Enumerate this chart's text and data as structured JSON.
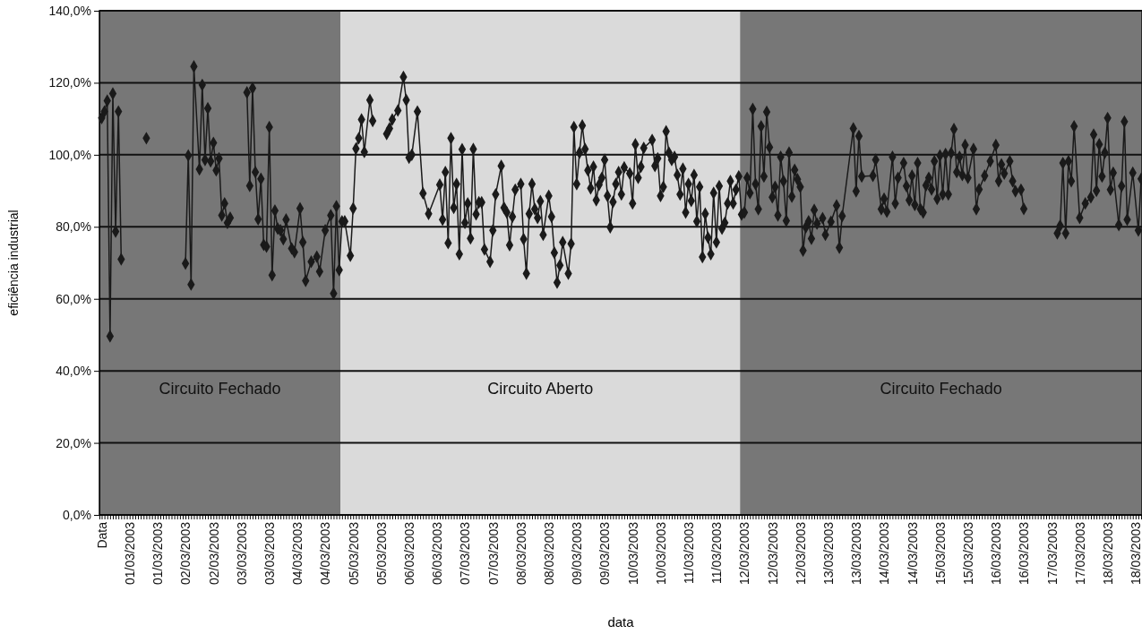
{
  "chart_data": {
    "type": "line",
    "xlabel": "data",
    "ylabel": "eficiência industrial",
    "grid": "y",
    "marker": "diamond",
    "line_style": "solid",
    "ylim": [
      0,
      140
    ],
    "yticks": [
      {
        "value": 0,
        "label": "0,0%"
      },
      {
        "value": 20,
        "label": "20,0%"
      },
      {
        "value": 40,
        "label": "40,0%"
      },
      {
        "value": 60,
        "label": "60,0%"
      },
      {
        "value": 80,
        "label": "80,0%"
      },
      {
        "value": 100,
        "label": "100,0%"
      },
      {
        "value": 120,
        "label": "120,0%"
      },
      {
        "value": 140,
        "label": "140,0%"
      }
    ],
    "categories": [
      "Data",
      null,
      null,
      null,
      null,
      null,
      null,
      null,
      null,
      null,
      "01/03/2003",
      null,
      null,
      null,
      null,
      null,
      null,
      null,
      null,
      null,
      "01/03/2003",
      null,
      null,
      null,
      null,
      null,
      null,
      null,
      null,
      null,
      "02/03/2003",
      null,
      null,
      null,
      null,
      null,
      null,
      null,
      null,
      null,
      "02/03/2003",
      null,
      null,
      null,
      null,
      null,
      null,
      null,
      null,
      null,
      "03/03/2003",
      null,
      null,
      null,
      null,
      null,
      null,
      null,
      null,
      null,
      "03/03/2003",
      null,
      null,
      null,
      null,
      null,
      null,
      null,
      null,
      null,
      "04/03/2003",
      null,
      null,
      null,
      null,
      null,
      null,
      null,
      null,
      null,
      "04/03/2003",
      null,
      null,
      null,
      null,
      null,
      null,
      null,
      null,
      null,
      "05/03/2003",
      null,
      null,
      null,
      null,
      null,
      null,
      null,
      null,
      null,
      "05/03/2003",
      null,
      null,
      null,
      null,
      null,
      null,
      null,
      null,
      null,
      "06/03/2003",
      null,
      null,
      null,
      null,
      null,
      null,
      null,
      null,
      null,
      "06/03/2003",
      null,
      null,
      null,
      null,
      null,
      null,
      null,
      null,
      null,
      "07/03/2003",
      null,
      null,
      null,
      null,
      null,
      null,
      null,
      null,
      null,
      "07/03/2003",
      null,
      null,
      null,
      null,
      null,
      null,
      null,
      null,
      null,
      "08/03/2003",
      null,
      null,
      null,
      null,
      null,
      null,
      null,
      null,
      null,
      "08/03/2003",
      null,
      null,
      null,
      null,
      null,
      null,
      null,
      null,
      null,
      "09/03/2003",
      null,
      null,
      null,
      null,
      null,
      null,
      null,
      null,
      null,
      "09/03/2003",
      null,
      null,
      null,
      null,
      null,
      null,
      null,
      null,
      null,
      "10/03/2003",
      null,
      null,
      null,
      null,
      null,
      null,
      null,
      null,
      null,
      "10/03/2003",
      null,
      null,
      null,
      null,
      null,
      null,
      null,
      null,
      null,
      "11/03/2003",
      null,
      null,
      null,
      null,
      null,
      null,
      null,
      null,
      null,
      "11/03/2003",
      null,
      null,
      null,
      null,
      null,
      null,
      null,
      null,
      null,
      "12/03/2003",
      null,
      null,
      null,
      null,
      null,
      null,
      null,
      null,
      null,
      "12/03/2003",
      null,
      null,
      null,
      null,
      null,
      null,
      null,
      null,
      null,
      "12/03/2003",
      null,
      null,
      null,
      null,
      null,
      null,
      null,
      null,
      null,
      "13/03/2003",
      null,
      null,
      null,
      null,
      null,
      null,
      null,
      null,
      null,
      "13/03/2003",
      null,
      null,
      null,
      null,
      null,
      null,
      null,
      null,
      null,
      "14/03/2003",
      null,
      null,
      null,
      null,
      null,
      null,
      null,
      null,
      null,
      "14/03/2003",
      null,
      null,
      null,
      null,
      null,
      null,
      null,
      null,
      null,
      "15/03/2003",
      null,
      null,
      null,
      null,
      null,
      null,
      null,
      null,
      null,
      "15/03/2003",
      null,
      null,
      null,
      null,
      null,
      null,
      null,
      null,
      null,
      "16/03/2003",
      null,
      null,
      null,
      null,
      null,
      null,
      null,
      null,
      null,
      "16/03/2003",
      null,
      null,
      null,
      null,
      null,
      null,
      null,
      null,
      null,
      "17/03/2003",
      null,
      null,
      null,
      null,
      null,
      null,
      null,
      null,
      null,
      "17/03/2003",
      null,
      null,
      null,
      null,
      null,
      null,
      null,
      null,
      null,
      "18/03/2003",
      null,
      null,
      null,
      null,
      null,
      null,
      null,
      null,
      null,
      "18/03/2003",
      null,
      null
    ],
    "annotations": [
      "Circuito Fechado",
      "Circuito Aberto",
      "Circuito Fechado"
    ],
    "series": [
      {
        "color": "#1a1a1a",
        "values": [
          110.2,
          112,
          115,
          49.6,
          117,
          78.7,
          112,
          71,
          null,
          null,
          null,
          null,
          null,
          null,
          null,
          null,
          104.6,
          null,
          null,
          null,
          null,
          null,
          null,
          null,
          null,
          null,
          null,
          null,
          null,
          null,
          69.8,
          99.8,
          64,
          124.5,
          null,
          96,
          119.4,
          98.6,
          112.9,
          98.2,
          103.3,
          95.7,
          99,
          83.2,
          86.5,
          81.1,
          82.5,
          null,
          null,
          null,
          null,
          null,
          117.3,
          91.4,
          118.5,
          95.2,
          82.1,
          93.3,
          75,
          74.5,
          107.7,
          66.6,
          84.5,
          79.5,
          79,
          76.6,
          82,
          null,
          74,
          73,
          null,
          85.1,
          75.7,
          65,
          null,
          70.3,
          null,
          71.7,
          67.6,
          null,
          79,
          null,
          83.2,
          61.5,
          85.7,
          68,
          81.5,
          81.5,
          null,
          72,
          85.1,
          101.7,
          104.6,
          109.8,
          100.8,
          null,
          115.2,
          109.4,
          null,
          null,
          null,
          null,
          105.8,
          107.3,
          109.8,
          null,
          112.3,
          null,
          121.6,
          115.2,
          99.2,
          100,
          null,
          112,
          null,
          89.3,
          null,
          83.6,
          null,
          null,
          null,
          91.7,
          82,
          95.2,
          75.5,
          104.6,
          85.3,
          91.9,
          72.4,
          101.5,
          81.1,
          86.5,
          76.8,
          101.6,
          83.5,
          86.8,
          86.8,
          73.7,
          null,
          70.3,
          79,
          89,
          null,
          96.9,
          85.3,
          84,
          74.9,
          82.8,
          90.3,
          null,
          91.9,
          76.6,
          67,
          83.6,
          91.9,
          84.9,
          82.5,
          87.1,
          77.8,
          null,
          88.6,
          82.8,
          72.8,
          64.5,
          69.3,
          75.7,
          null,
          67,
          75.3,
          107.7,
          91.9,
          100.6,
          108.1,
          101.6,
          95.7,
          90.7,
          96.7,
          87.4,
          91.7,
          93.6,
          98.6,
          88.6,
          79.9,
          86.9,
          91.9,
          95.2,
          89,
          96.5,
          null,
          94.8,
          86.5,
          102.9,
          93.6,
          96.7,
          101.9,
          null,
          null,
          104.1,
          96.9,
          99,
          88.6,
          91.1,
          106.5,
          100.6,
          98.6,
          99.4,
          94.4,
          89,
          96.1,
          84,
          91.9,
          87.2,
          94.4,
          81.5,
          91.1,
          71.6,
          83.6,
          77,
          72.4,
          89.4,
          75.7,
          91.3,
          79.5,
          81.1,
          86.5,
          92.7,
          86.5,
          90.3,
          94,
          83.4,
          84,
          93.6,
          89.4,
          112.7,
          91.9,
          84.9,
          107.9,
          94,
          111.9,
          102.1,
          88.2,
          91.1,
          83.2,
          99.4,
          92.7,
          81.7,
          100.6,
          88.4,
          95.8,
          93.2,
          91.1,
          73.4,
          79.9,
          81.5,
          76.7,
          84.7,
          80.9,
          null,
          82.4,
          77.8,
          null,
          81.4,
          null,
          85.9,
          74.2,
          83,
          null,
          null,
          null,
          107.3,
          89.9,
          105.2,
          94,
          null,
          null,
          null,
          94.2,
          98.6,
          null,
          84.9,
          87.8,
          84.2,
          null,
          99.4,
          86.5,
          93.6,
          null,
          97.7,
          91.3,
          87.4,
          94.2,
          86.1,
          97.7,
          84.9,
          84,
          91.5,
          93.6,
          90.4,
          98.2,
          87.8,
          99.8,
          89,
          100.2,
          89,
          100.5,
          107.1,
          95.2,
          99.4,
          94.4,
          102.7,
          93.6,
          null,
          101.6,
          84.9,
          90.4,
          null,
          94.2,
          null,
          98.2,
          null,
          102.7,
          92.7,
          97.3,
          94.8,
          null,
          98.2,
          92.7,
          89.9,
          null,
          90.3,
          85,
          null,
          null,
          null,
          null,
          null,
          null,
          null,
          null,
          null,
          null,
          null,
          78.2,
          80.3,
          97.7,
          78.2,
          98.2,
          92.7,
          107.9,
          null,
          82.5,
          null,
          86.5,
          null,
          88.2,
          105.6,
          90,
          102.9,
          94,
          100.6,
          110.2,
          90.3,
          95,
          null,
          80.5,
          91.3,
          109.2,
          82,
          null,
          95,
          null,
          79,
          93.3
        ]
      }
    ]
  }
}
